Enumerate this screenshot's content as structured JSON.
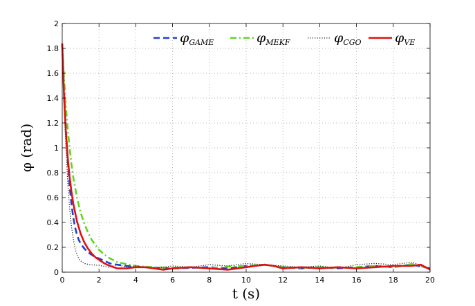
{
  "chart_data": {
    "type": "line",
    "xlabel": "t (s)",
    "ylabel": "φ (rad)",
    "xlim": [
      0,
      20
    ],
    "ylim": [
      0,
      2
    ],
    "xticks": [
      0,
      2,
      4,
      6,
      8,
      10,
      12,
      14,
      16,
      18,
      20
    ],
    "yticks": [
      0,
      0.2,
      0.4,
      0.6,
      0.8,
      1,
      1.2,
      1.4,
      1.6,
      1.8,
      2
    ],
    "grid": true,
    "legend_position": "top-right",
    "series": [
      {
        "name": "φGAME",
        "base": "φ",
        "sub": "GAME",
        "color": "#1f3fd8",
        "style": "dashed",
        "x": [
          0,
          0.1,
          0.2,
          0.3,
          0.4,
          0.5,
          0.6,
          0.7,
          0.8,
          0.9,
          1.0,
          1.2,
          1.4,
          1.6,
          1.8,
          2.0,
          2.3,
          2.6,
          3.0,
          3.5,
          4.0,
          4.5,
          5.0,
          6,
          7,
          8,
          9,
          10,
          11,
          12,
          13,
          14,
          15,
          16,
          17,
          18,
          19,
          20
        ],
        "y": [
          1.83,
          1.45,
          1.15,
          0.9,
          0.7,
          0.55,
          0.44,
          0.36,
          0.3,
          0.26,
          0.23,
          0.19,
          0.16,
          0.14,
          0.12,
          0.11,
          0.09,
          0.07,
          0.06,
          0.05,
          0.045,
          0.04,
          0.035,
          0.03,
          0.035,
          0.04,
          0.03,
          0.05,
          0.06,
          0.04,
          0.03,
          0.04,
          0.03,
          0.04,
          0.05,
          0.04,
          0.06,
          0.03
        ]
      },
      {
        "name": "φMEKF",
        "base": "φ",
        "sub": "MEKF",
        "color": "#5fd620",
        "style": "dashdot",
        "x": [
          0,
          0.1,
          0.2,
          0.3,
          0.4,
          0.5,
          0.6,
          0.8,
          1.0,
          1.2,
          1.4,
          1.6,
          1.8,
          2.0,
          2.3,
          2.6,
          3.0,
          3.5,
          4.0,
          4.5,
          5.0,
          6,
          7,
          8,
          9,
          10,
          11,
          12,
          13,
          14,
          15,
          16,
          17,
          18,
          19,
          20
        ],
        "y": [
          1.83,
          1.55,
          1.33,
          1.15,
          1.0,
          0.87,
          0.76,
          0.6,
          0.48,
          0.39,
          0.32,
          0.26,
          0.22,
          0.18,
          0.14,
          0.11,
          0.08,
          0.065,
          0.05,
          0.045,
          0.04,
          0.035,
          0.04,
          0.03,
          0.045,
          0.05,
          0.06,
          0.04,
          0.035,
          0.04,
          0.035,
          0.04,
          0.05,
          0.04,
          0.065,
          0.03
        ]
      },
      {
        "name": "φCGO",
        "base": "φ",
        "sub": "CGO",
        "color": "#222222",
        "style": "dotted",
        "x": [
          0,
          0.1,
          0.2,
          0.3,
          0.4,
          0.5,
          0.6,
          0.7,
          0.8,
          0.9,
          1.0,
          1.2,
          1.5,
          2.0,
          2.5,
          3.0,
          3.5,
          4.0,
          5,
          6,
          7,
          8,
          9,
          10,
          11,
          12,
          13,
          14,
          15,
          16,
          17,
          18,
          19,
          20
        ],
        "y": [
          1.83,
          1.35,
          1.0,
          0.72,
          0.52,
          0.37,
          0.27,
          0.19,
          0.14,
          0.11,
          0.09,
          0.07,
          0.06,
          0.055,
          0.04,
          0.06,
          0.04,
          0.05,
          0.03,
          0.05,
          0.04,
          0.06,
          0.05,
          0.07,
          0.06,
          0.05,
          0.04,
          0.05,
          0.03,
          0.06,
          0.07,
          0.06,
          0.08,
          0.03
        ]
      },
      {
        "name": "φVE",
        "base": "φ",
        "sub": "VE",
        "color": "#e01010",
        "style": "solid",
        "x": [
          0,
          0.1,
          0.2,
          0.3,
          0.4,
          0.5,
          0.6,
          0.8,
          1.0,
          1.2,
          1.4,
          1.6,
          1.8,
          2.0,
          2.3,
          2.6,
          3.0,
          3.5,
          4.0,
          4.5,
          5.0,
          5.5,
          6,
          7,
          8,
          9,
          10,
          10.5,
          11,
          11.5,
          12,
          13,
          14,
          15,
          16,
          17,
          18,
          19,
          19.5,
          20
        ],
        "y": [
          1.84,
          1.4,
          1.12,
          0.92,
          0.77,
          0.65,
          0.55,
          0.41,
          0.31,
          0.24,
          0.19,
          0.15,
          0.12,
          0.1,
          0.07,
          0.05,
          0.03,
          0.03,
          0.04,
          0.04,
          0.03,
          0.02,
          0.03,
          0.04,
          0.03,
          0.02,
          0.04,
          0.05,
          0.06,
          0.05,
          0.03,
          0.04,
          0.03,
          0.04,
          0.03,
          0.04,
          0.05,
          0.05,
          0.06,
          0.02
        ]
      }
    ]
  }
}
